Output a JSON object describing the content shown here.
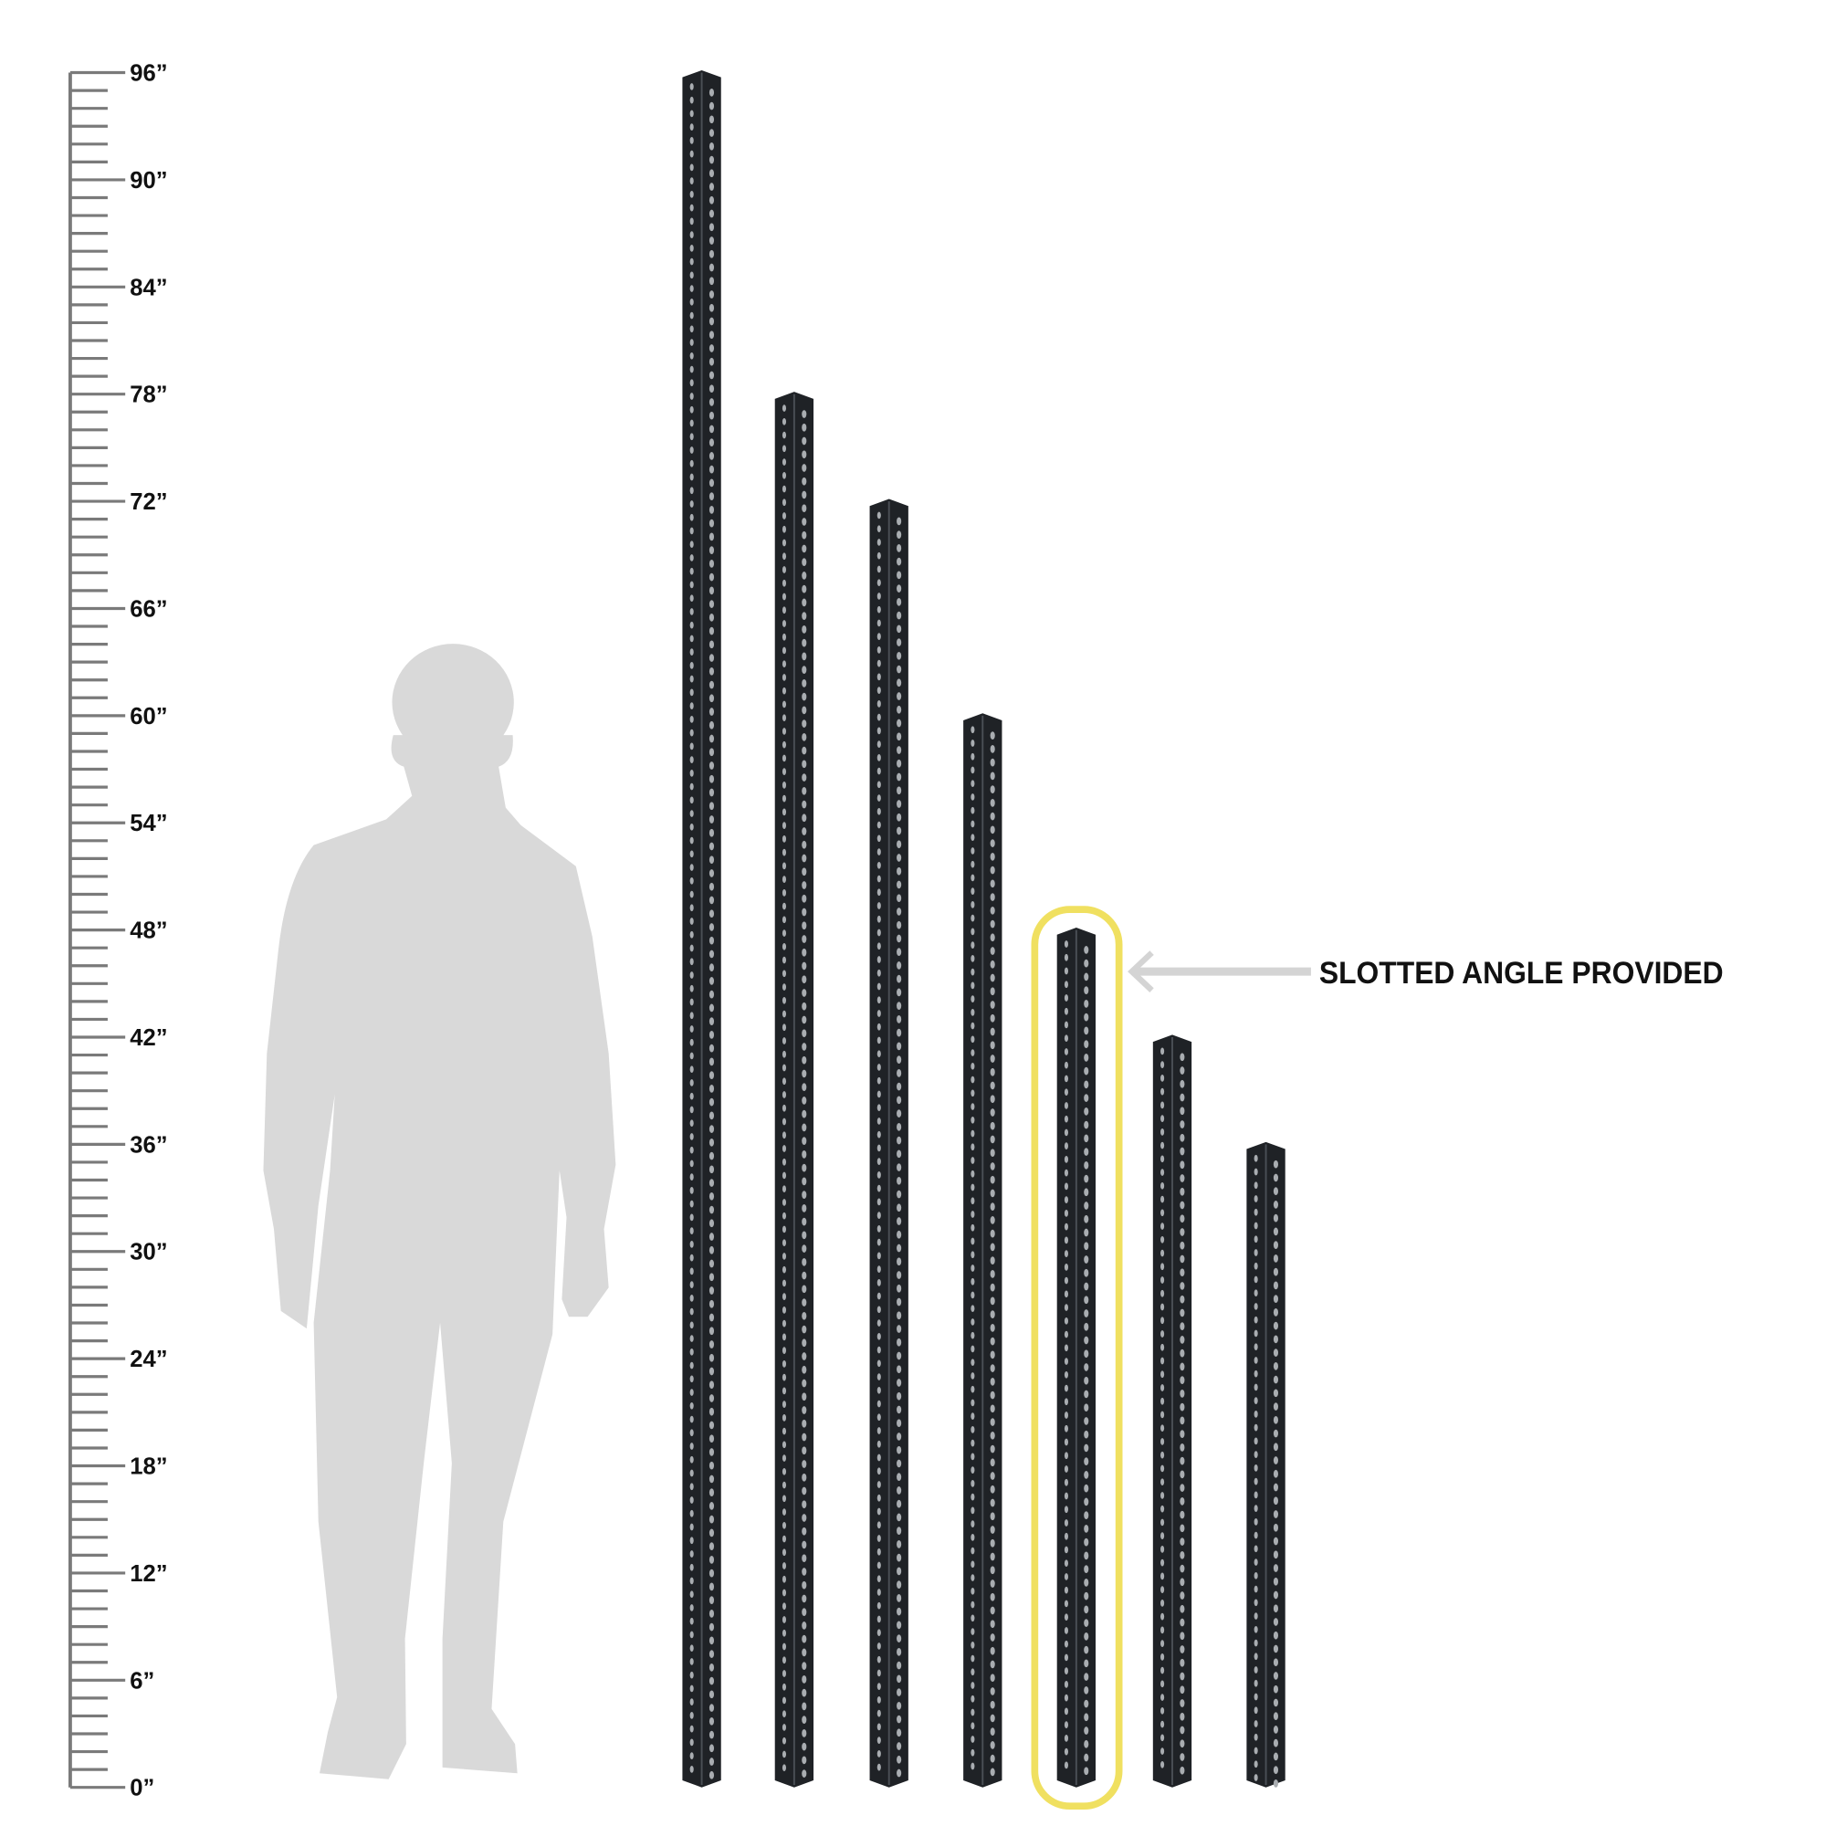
{
  "ruler": {
    "unit_mark": "”",
    "min": 0,
    "max": 96,
    "label_step": 6,
    "labels": [
      "0”",
      "6”",
      "12”",
      "18”",
      "24”",
      "30”",
      "36”",
      "42”",
      "48”",
      "54”",
      "60”",
      "66”",
      "72”",
      "78”",
      "84”",
      "90”",
      "96”"
    ],
    "color": "#7a7a7a"
  },
  "angles": {
    "heights_in": [
      96,
      78,
      72,
      60,
      48,
      42,
      36
    ],
    "highlighted_index": 4,
    "color": "#1f2226",
    "hole_color": "#a9adb1"
  },
  "highlight": {
    "color": "#f0e060"
  },
  "callout": {
    "text": "SLOTTED ANGLE PROVIDED",
    "arrow_color": "#d4d4d4"
  },
  "person": {
    "color": "#d9d9d9"
  }
}
